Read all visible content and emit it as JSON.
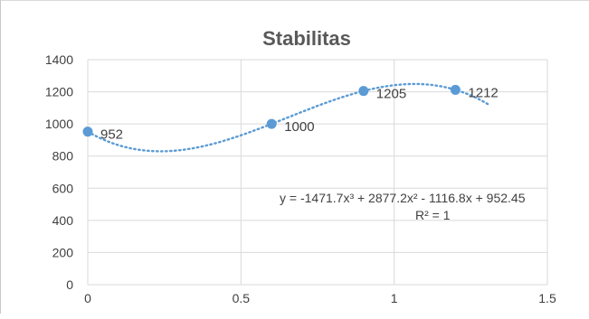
{
  "chart_data": {
    "type": "scatter",
    "title": "Stabilitas",
    "xlabel": "",
    "ylabel": "",
    "xlim": [
      0,
      1.5
    ],
    "ylim": [
      0,
      1400
    ],
    "x_ticks": [
      0,
      0.5,
      1,
      1.5
    ],
    "x_tick_labels": [
      "0",
      "0.5",
      "1",
      "1.5"
    ],
    "y_ticks": [
      0,
      200,
      400,
      600,
      800,
      1000,
      1200,
      1400
    ],
    "y_tick_labels": [
      "0",
      "200",
      "400",
      "600",
      "800",
      "1000",
      "1200",
      "1400"
    ],
    "grid": true,
    "series": [
      {
        "x": [
          0,
          0.6,
          0.9,
          1.2
        ],
        "y": [
          952,
          1000,
          1205,
          1212
        ],
        "data_labels": [
          "952",
          "1000",
          "1205",
          "1212"
        ],
        "color": "#5b9bd5"
      }
    ],
    "trendline": {
      "type": "polynomial",
      "order": 3,
      "coefficients": [
        -1471.7,
        2877.2,
        -1116.8,
        952.45
      ],
      "equation_label": "y = -1471.7x³ + 2877.2x² - 1116.8x + 952.45",
      "r2_label": "R² = 1",
      "color": "#5b9bd5",
      "style": "dotted"
    }
  }
}
